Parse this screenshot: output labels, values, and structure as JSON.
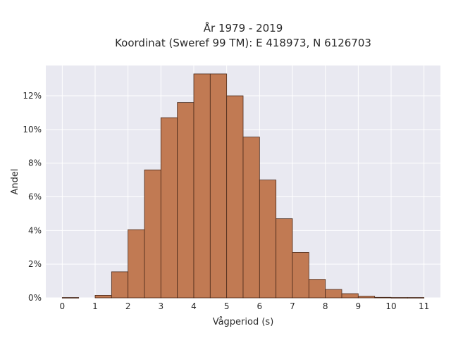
{
  "chart_data": {
    "type": "bar",
    "title_line1": "År 1979 - 2019",
    "title_line2": "Koordinat (Sweref 99 TM): E 418973, N 6126703",
    "xlabel": "Vågperiod (s)",
    "ylabel": "Andel",
    "xlim": [
      -0.5,
      11.5
    ],
    "ylim": [
      0,
      13.8
    ],
    "x_ticks": [
      0,
      1,
      2,
      3,
      4,
      5,
      6,
      7,
      8,
      9,
      10,
      11
    ],
    "x_tick_labels": [
      "0",
      "1",
      "2",
      "3",
      "4",
      "5",
      "6",
      "7",
      "8",
      "9",
      "10",
      "11"
    ],
    "y_ticks": [
      0,
      2,
      4,
      6,
      8,
      10,
      12
    ],
    "y_tick_labels": [
      "0%",
      "2%",
      "4%",
      "6%",
      "8%",
      "10%",
      "12%"
    ],
    "bin_width": 0.5,
    "bins": [
      {
        "start": 0.0,
        "value": 0.02
      },
      {
        "start": 0.5,
        "value": 0.0
      },
      {
        "start": 1.0,
        "value": 0.15
      },
      {
        "start": 1.5,
        "value": 1.55
      },
      {
        "start": 2.0,
        "value": 4.05
      },
      {
        "start": 2.5,
        "value": 7.6
      },
      {
        "start": 3.0,
        "value": 10.7
      },
      {
        "start": 3.5,
        "value": 11.6
      },
      {
        "start": 4.0,
        "value": 13.3
      },
      {
        "start": 4.5,
        "value": 13.3
      },
      {
        "start": 5.0,
        "value": 12.0
      },
      {
        "start": 5.5,
        "value": 9.55
      },
      {
        "start": 6.0,
        "value": 7.0
      },
      {
        "start": 6.5,
        "value": 4.7
      },
      {
        "start": 7.0,
        "value": 2.7
      },
      {
        "start": 7.5,
        "value": 1.1
      },
      {
        "start": 8.0,
        "value": 0.5
      },
      {
        "start": 8.5,
        "value": 0.25
      },
      {
        "start": 9.0,
        "value": 0.1
      },
      {
        "start": 9.5,
        "value": 0.03
      },
      {
        "start": 10.0,
        "value": 0.02
      },
      {
        "start": 10.5,
        "value": 0.02
      }
    ],
    "grid": true,
    "colors": {
      "bar_fill": "#c17a53",
      "bar_stroke": "#4a2a1a",
      "plot_bg": "#e9e9f1",
      "grid": "#ffffff"
    }
  }
}
